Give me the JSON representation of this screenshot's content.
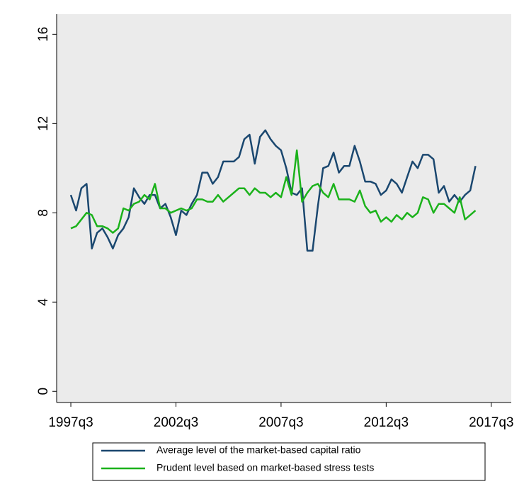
{
  "chart_data": {
    "type": "line",
    "x": [
      150,
      151,
      152,
      153,
      154,
      155,
      156,
      157,
      158,
      159,
      160,
      161,
      162,
      163,
      164,
      165,
      166,
      167,
      168,
      169,
      170,
      171,
      172,
      173,
      174,
      175,
      176,
      177,
      178,
      179,
      180,
      181,
      182,
      183,
      184,
      185,
      186,
      187,
      188,
      189,
      190,
      191,
      192,
      193,
      194,
      195,
      196,
      197,
      198,
      199,
      200,
      201,
      202,
      203,
      204,
      205,
      206,
      207,
      208,
      209,
      210,
      211,
      212,
      213,
      214,
      215,
      216,
      217,
      218,
      219,
      220,
      221,
      222,
      223,
      224,
      225,
      226,
      227
    ],
    "series": [
      {
        "name": "Average level of the market-based capital ratio",
        "color": "#1a476f",
        "values": [
          8.8,
          8.1,
          9.1,
          9.3,
          6.4,
          7.1,
          7.3,
          6.9,
          6.4,
          7.0,
          7.3,
          7.8,
          9.1,
          8.7,
          8.4,
          8.8,
          8.8,
          8.2,
          8.4,
          7.8,
          7.0,
          8.1,
          7.9,
          8.4,
          8.8,
          9.8,
          9.8,
          9.3,
          9.6,
          10.3,
          10.3,
          10.3,
          10.5,
          11.3,
          11.5,
          10.2,
          11.4,
          11.7,
          11.3,
          11.0,
          10.8,
          10.0,
          8.9,
          8.8,
          9.1,
          6.3,
          6.3,
          8.3,
          10.0,
          10.1,
          10.7,
          9.8,
          10.1,
          10.1,
          11.0,
          10.3,
          9.4,
          9.4,
          9.3,
          8.8,
          9.0,
          9.5,
          9.3,
          8.9,
          9.6,
          10.3,
          10.0,
          10.6,
          10.6,
          10.4,
          8.9,
          9.2,
          8.5,
          8.8,
          8.5,
          8.8,
          9.0,
          10.1
        ]
      },
      {
        "name": "Prudent level based on market-based stress tests",
        "color": "#1bb21b",
        "values": [
          7.3,
          7.4,
          7.7,
          8.0,
          7.9,
          7.4,
          7.4,
          7.3,
          7.1,
          7.3,
          8.2,
          8.1,
          8.4,
          8.5,
          8.8,
          8.6,
          9.3,
          8.2,
          8.2,
          8.0,
          8.1,
          8.2,
          8.1,
          8.2,
          8.6,
          8.6,
          8.5,
          8.5,
          8.8,
          8.5,
          8.7,
          8.9,
          9.1,
          9.1,
          8.8,
          9.1,
          8.9,
          8.9,
          8.7,
          8.9,
          8.7,
          9.6,
          8.8,
          10.8,
          8.5,
          8.9,
          9.2,
          9.3,
          8.9,
          8.7,
          9.3,
          8.6,
          8.6,
          8.6,
          8.5,
          9.0,
          8.3,
          8.0,
          8.1,
          7.6,
          7.8,
          7.6,
          7.9,
          7.7,
          8.0,
          7.8,
          8.0,
          8.7,
          8.6,
          8.0,
          8.4,
          8.4,
          8.2,
          8.0,
          8.7,
          7.7,
          7.9,
          8.1
        ]
      }
    ],
    "xlim": [
      147.3,
      233.8
    ],
    "xticks": [
      {
        "value": 150,
        "label": "1997q3"
      },
      {
        "value": 170,
        "label": "2002q3"
      },
      {
        "value": 190,
        "label": "2007q3"
      },
      {
        "value": 210,
        "label": "2012q3"
      },
      {
        "value": 230,
        "label": "2017q3"
      }
    ],
    "ylim": [
      -0.5,
      16.9
    ],
    "yticks": [
      0,
      4,
      8,
      12,
      16
    ],
    "grid": false,
    "legend": "bottom"
  }
}
